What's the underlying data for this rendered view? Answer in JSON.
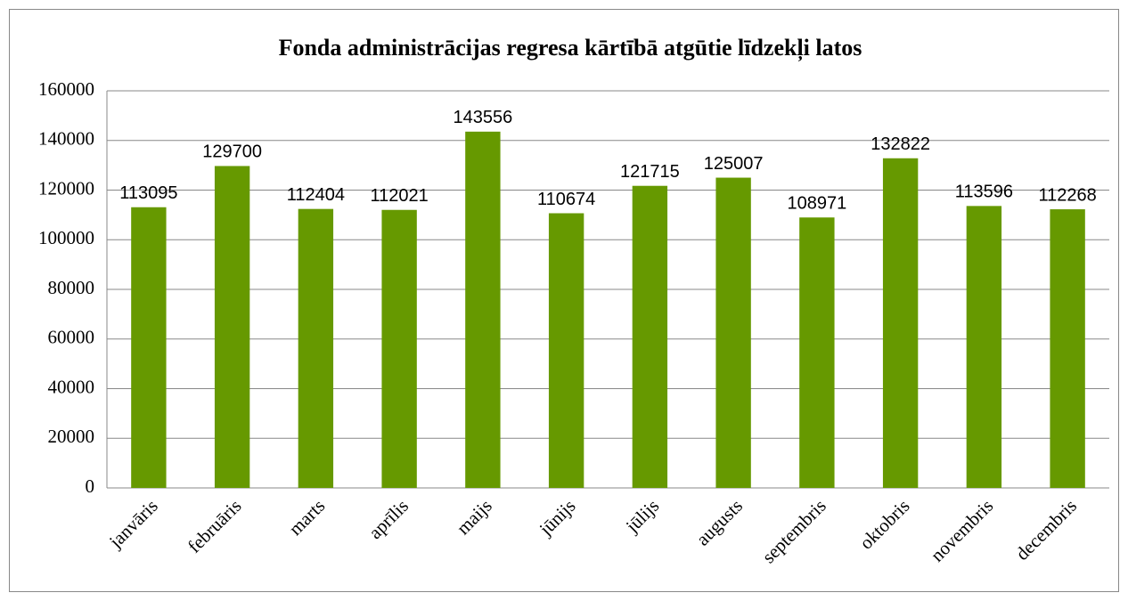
{
  "chart_data": {
    "type": "bar",
    "title": "Fonda administrācijas regresa kārtībā atgūtie līdzekļi latos",
    "categories": [
      "janvāris",
      "februāris",
      "marts",
      "aprīlis",
      "maijs",
      "jūnijs",
      "jūlijs",
      "augusts",
      "septembris",
      "oktobris",
      "novembris",
      "decembris"
    ],
    "values": [
      113095,
      129700,
      112404,
      112021,
      143556,
      110674,
      121715,
      125007,
      108971,
      132822,
      113596,
      112268
    ],
    "color": "#669900",
    "ylim": [
      0,
      160000
    ],
    "yticks": [
      0,
      20000,
      40000,
      60000,
      80000,
      100000,
      120000,
      140000,
      160000
    ],
    "grid": true
  }
}
